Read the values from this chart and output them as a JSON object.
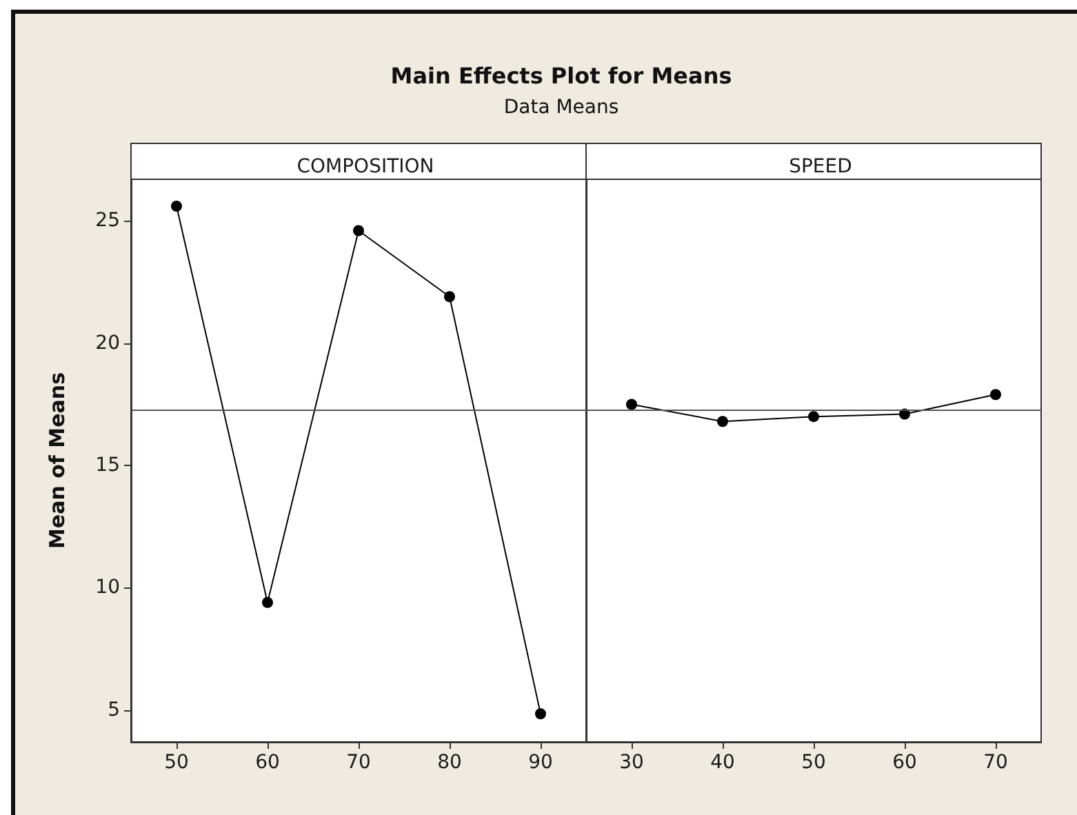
{
  "chart_data": [
    {
      "type": "line",
      "title": "Main Effects Plot for Means",
      "subtitle": "Data Means",
      "xlabel": "COMPOSITION",
      "ylabel": "Mean of Means",
      "categories": [
        "50",
        "60",
        "70",
        "80",
        "90"
      ],
      "series": [
        {
          "color": "#000000",
          "values": [
            25.6,
            9.4,
            24.6,
            21.9,
            4.85
          ]
        }
      ],
      "ylim": [
        3.7,
        26.7
      ],
      "yticks": [
        5,
        10,
        15,
        20,
        25
      ],
      "ref_lines": [
        {
          "axis": "y",
          "value": 17.25,
          "color": "#555555"
        }
      ],
      "marker": "circle",
      "line_style": "solid",
      "grid": false
    },
    {
      "type": "line",
      "xlabel": "SPEED",
      "categories": [
        "30",
        "40",
        "50",
        "60",
        "70"
      ],
      "series": [
        {
          "color": "#000000",
          "values": [
            17.5,
            16.8,
            17.0,
            17.1,
            17.9
          ]
        }
      ],
      "ylim": [
        3.7,
        26.7
      ],
      "yticks": [
        5,
        10,
        15,
        20,
        25
      ],
      "tick_labels": "x",
      "ref_lines": [
        {
          "axis": "y",
          "value": 17.25,
          "color": "#555555"
        }
      ],
      "marker": "circle",
      "line_style": "solid",
      "grid": false
    }
  ]
}
